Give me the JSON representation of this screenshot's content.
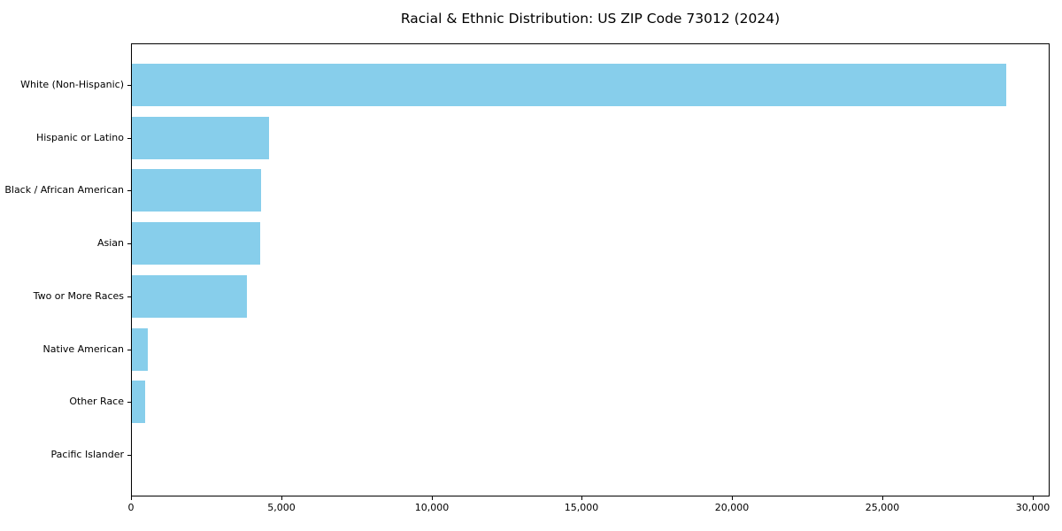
{
  "chart_data": {
    "type": "bar",
    "orientation": "horizontal",
    "title": "Racial & Ethnic Distribution: US ZIP Code 73012 (2024)",
    "categories": [
      "White (Non-Hispanic)",
      "Hispanic or Latino",
      "Black / African American",
      "Asian",
      "Two or More Races",
      "Native American",
      "Other Race",
      "Pacific Islander"
    ],
    "values": [
      29100,
      4560,
      4300,
      4270,
      3830,
      520,
      440,
      0
    ],
    "xlabel": "",
    "ylabel": "",
    "xlim": [
      0,
      30570
    ],
    "x_ticks": [
      0,
      5000,
      10000,
      15000,
      20000,
      25000,
      30000
    ],
    "x_tick_labels": [
      "0",
      "5,000",
      "10,000",
      "15,000",
      "20,000",
      "25,000",
      "30,000"
    ],
    "bar_color": "#87CEEB",
    "frame_color": "#000000",
    "grid": false,
    "legend_position": "none"
  }
}
